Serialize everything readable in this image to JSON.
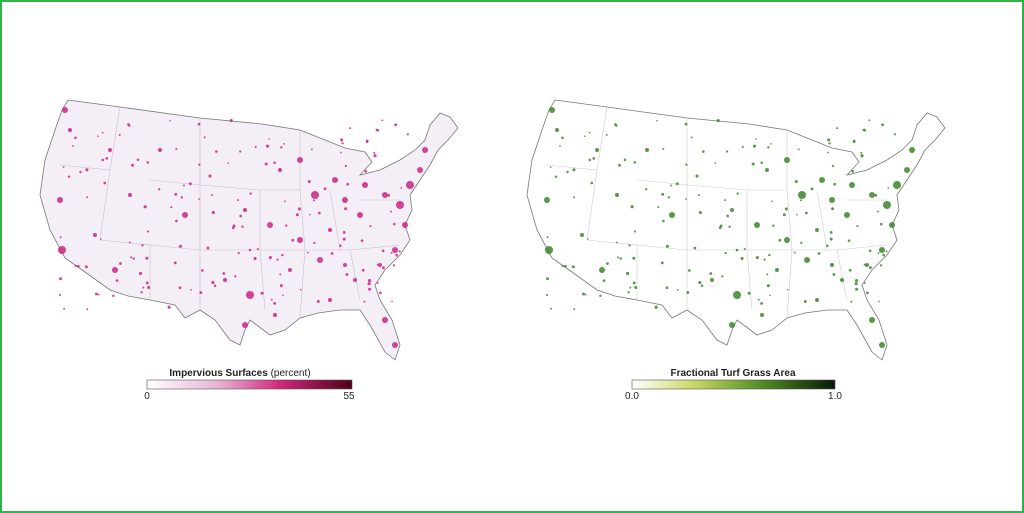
{
  "maps": [
    {
      "legend": {
        "title": "Impervious Surfaces",
        "unit": "(percent)",
        "ticks": [
          "0",
          "55"
        ]
      }
    },
    {
      "legend": {
        "title": "Fractional Turf Grass Area",
        "ticks": [
          "0.0",
          "1.0"
        ]
      }
    }
  ]
}
